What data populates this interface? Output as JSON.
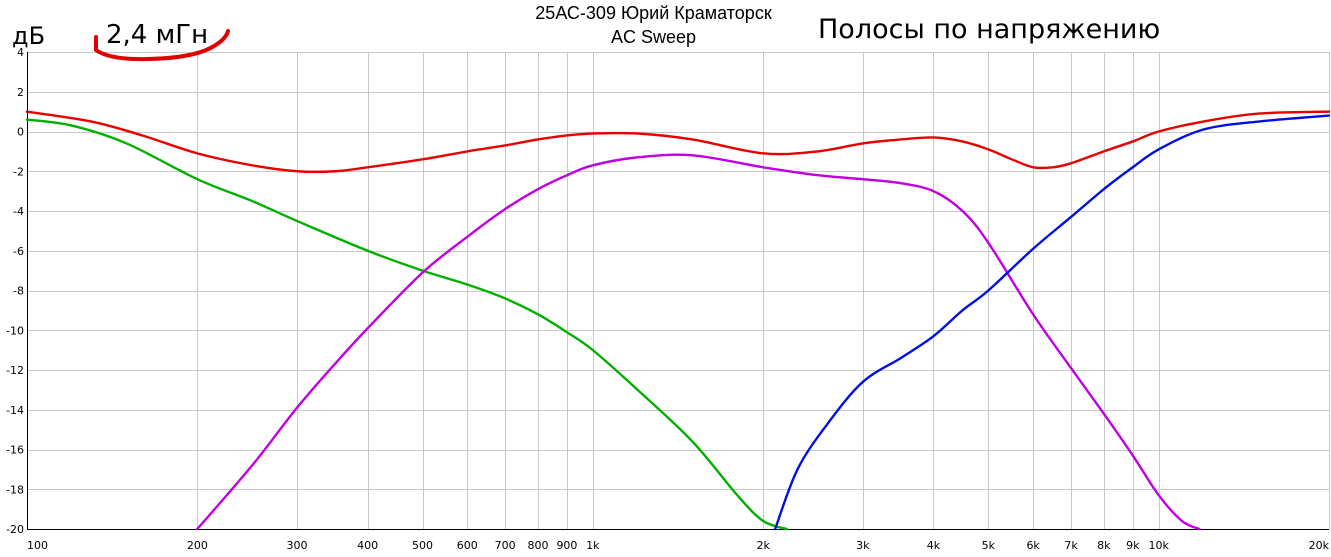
{
  "header": {
    "title": "25АС-309 Юрий Краматорск",
    "mode": "AC Sweep",
    "ylabel": "дБ",
    "annotation": "2,4 мГн",
    "subtitle": "Полосы по напряжению"
  },
  "colors": {
    "total": "#e80000",
    "woofer": "#00b000",
    "mid": "#c000e0",
    "tweeter": "#0010e0",
    "grid": "#c8c8c8",
    "annotation": "#e00000"
  },
  "chart_data": {
    "type": "line",
    "xscale": "log",
    "xlim": [
      100,
      20000
    ],
    "ylim": [
      -20,
      4
    ],
    "grid": true,
    "xticks": [
      {
        "v": 100,
        "label": "100"
      },
      {
        "v": 200,
        "label": "200"
      },
      {
        "v": 300,
        "label": "300"
      },
      {
        "v": 400,
        "label": "400"
      },
      {
        "v": 500,
        "label": "500"
      },
      {
        "v": 600,
        "label": "600"
      },
      {
        "v": 700,
        "label": "700"
      },
      {
        "v": 800,
        "label": "800"
      },
      {
        "v": 900,
        "label": "900"
      },
      {
        "v": 1000,
        "label": "1k"
      },
      {
        "v": 2000,
        "label": "2k"
      },
      {
        "v": 3000,
        "label": "3k"
      },
      {
        "v": 4000,
        "label": "4k"
      },
      {
        "v": 5000,
        "label": "5k"
      },
      {
        "v": 6000,
        "label": "6k"
      },
      {
        "v": 7000,
        "label": "7k"
      },
      {
        "v": 8000,
        "label": "8k"
      },
      {
        "v": 9000,
        "label": "9k"
      },
      {
        "v": 10000,
        "label": "10k"
      },
      {
        "v": 20000,
        "label": "20k"
      }
    ],
    "yticks": [
      4,
      2,
      0,
      -2,
      -4,
      -6,
      -8,
      -10,
      -12,
      -14,
      -16,
      -18,
      -20
    ],
    "series": [
      {
        "key": "total",
        "x": [
          100,
          130,
          160,
          200,
          250,
          300,
          350,
          400,
          500,
          600,
          700,
          800,
          900,
          1000,
          1200,
          1500,
          2000,
          2500,
          3000,
          3500,
          4000,
          4500,
          5000,
          5500,
          6000,
          6500,
          7000,
          8000,
          9000,
          10000,
          12000,
          15000,
          20000
        ],
        "y": [
          1.0,
          0.5,
          -0.2,
          -1.1,
          -1.7,
          -2.0,
          -2.0,
          -1.8,
          -1.4,
          -1.0,
          -0.7,
          -0.4,
          -0.2,
          -0.1,
          -0.1,
          -0.4,
          -1.1,
          -1.0,
          -0.6,
          -0.4,
          -0.3,
          -0.5,
          -0.9,
          -1.4,
          -1.8,
          -1.8,
          -1.6,
          -1.0,
          -0.5,
          0.0,
          0.5,
          0.9,
          1.0
        ]
      },
      {
        "key": "woofer",
        "x": [
          100,
          120,
          150,
          200,
          250,
          300,
          400,
          500,
          600,
          700,
          800,
          900,
          1000,
          1200,
          1500,
          1800,
          2000,
          2200
        ],
        "y": [
          0.6,
          0.3,
          -0.6,
          -2.4,
          -3.5,
          -4.5,
          -6.0,
          -7.0,
          -7.7,
          -8.4,
          -9.2,
          -10.1,
          -11.0,
          -13.0,
          -15.6,
          -18.3,
          -19.6,
          -20.0
        ]
      },
      {
        "key": "mid",
        "x": [
          200,
          250,
          300,
          350,
          400,
          500,
          600,
          700,
          800,
          900,
          1000,
          1200,
          1500,
          2000,
          2500,
          3000,
          3500,
          4000,
          4500,
          5000,
          6000,
          7000,
          8000,
          9000,
          10000,
          11000,
          11800
        ],
        "y": [
          -20.0,
          -16.8,
          -13.9,
          -11.7,
          -9.9,
          -7.1,
          -5.3,
          -3.9,
          -2.9,
          -2.2,
          -1.7,
          -1.3,
          -1.2,
          -1.8,
          -2.2,
          -2.4,
          -2.6,
          -3.0,
          -4.0,
          -5.6,
          -9.2,
          -11.9,
          -14.2,
          -16.3,
          -18.3,
          -19.6,
          -20.0
        ]
      },
      {
        "key": "tweeter",
        "x": [
          2100,
          2300,
          2600,
          3000,
          3500,
          4000,
          4500,
          5000,
          6000,
          7000,
          8000,
          9000,
          10000,
          12000,
          15000,
          20000
        ],
        "y": [
          -20.0,
          -17.0,
          -14.7,
          -12.6,
          -11.4,
          -10.3,
          -9.0,
          -8.0,
          -5.9,
          -4.3,
          -2.9,
          -1.8,
          -0.9,
          0.1,
          0.5,
          0.8
        ]
      }
    ]
  }
}
